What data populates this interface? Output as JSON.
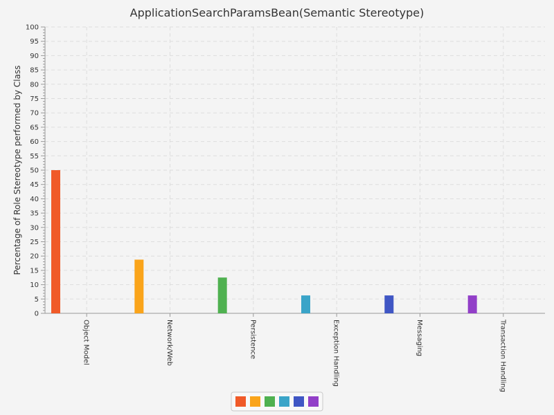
{
  "chart_data": {
    "type": "bar",
    "title": "ApplicationSearchParamsBean(Semantic Stereotype)",
    "xlabel": "",
    "ylabel": "Percentage of Role Stereotype performed by Class",
    "ylim": [
      0,
      100
    ],
    "yticks": [
      0,
      5,
      10,
      15,
      20,
      25,
      30,
      35,
      40,
      45,
      50,
      55,
      60,
      65,
      70,
      75,
      80,
      85,
      90,
      95,
      100
    ],
    "grid": true,
    "legend_position": "bottom",
    "categories": [
      "Object Model",
      "Network/Web",
      "Persistence",
      "Exception Handling",
      "Messaging",
      "Transaction Handling"
    ],
    "values": [
      50,
      18.75,
      12.5,
      6.25,
      6.25,
      6.25
    ],
    "colors": [
      "#f05a28",
      "#faa41a",
      "#4fb150",
      "#3aa4c8",
      "#3f56c4",
      "#923fc8"
    ],
    "background": "#f4f4f4",
    "grid_color": "#dddddd"
  }
}
